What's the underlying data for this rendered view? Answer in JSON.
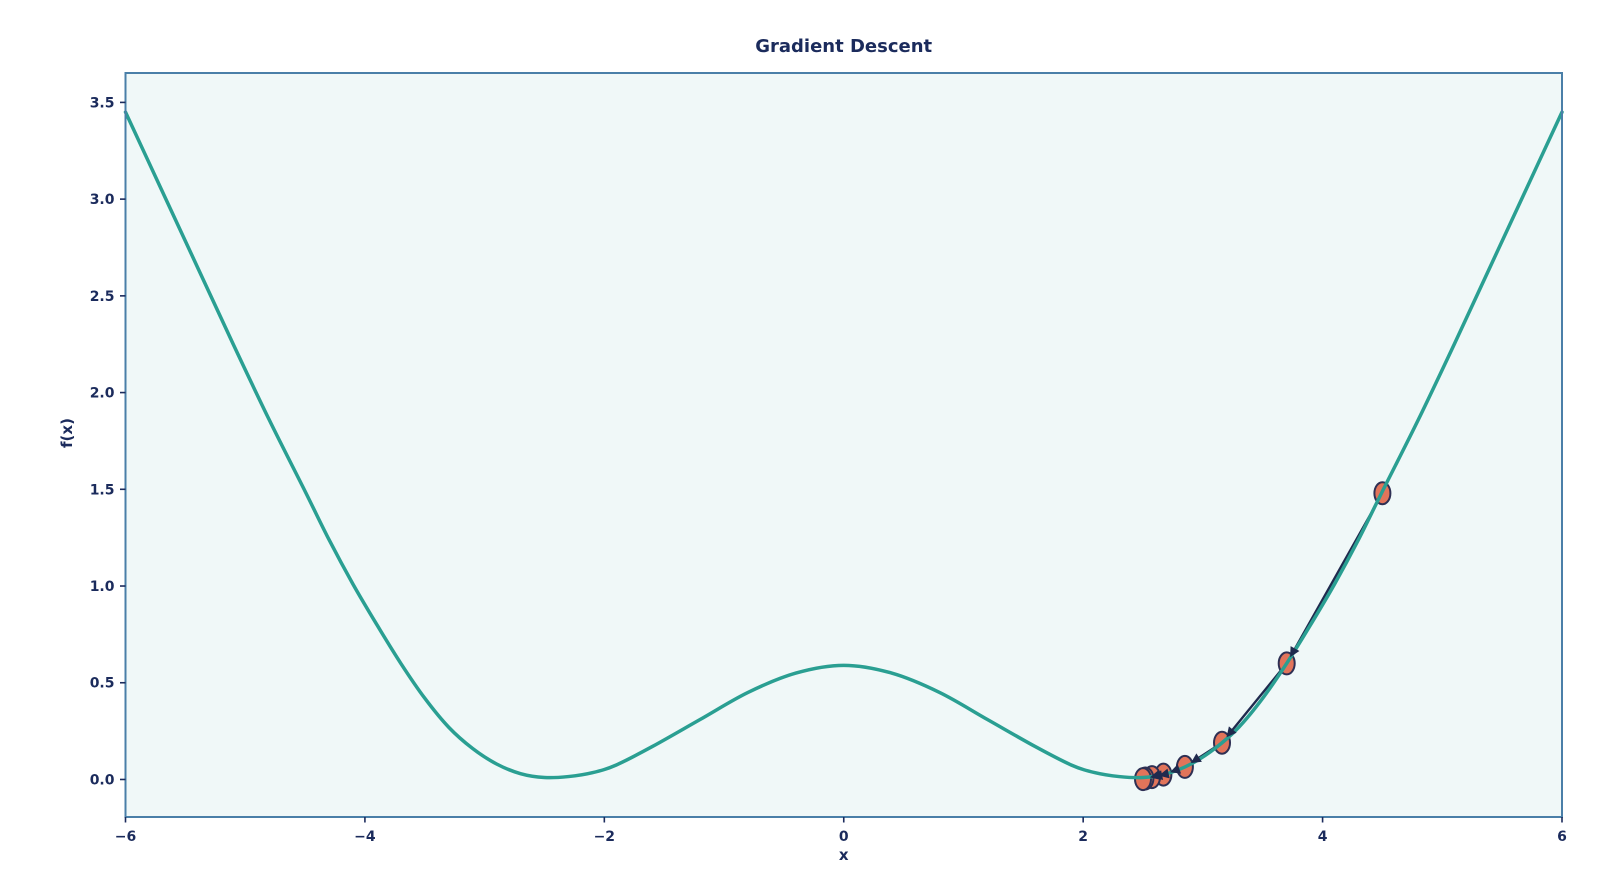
{
  "chart_data": {
    "type": "line",
    "title": "Gradient Descent",
    "xlabel": "x",
    "ylabel": "f(x)",
    "xlim": [
      -6,
      6
    ],
    "ylim": [
      -0.194,
      3.652
    ],
    "grid": false,
    "legend": null,
    "plot_background_color": "#f0f8f8",
    "outer_background_color": "#ffffff",
    "spine_color": "#4a7fa8",
    "text_color": "#1b2b5c",
    "x_ticks": {
      "values": [
        -6,
        -4,
        -2,
        0,
        2,
        4,
        6
      ],
      "labels": [
        "−6",
        "−4",
        "−2",
        "0",
        "2",
        "4",
        "6"
      ]
    },
    "y_ticks": {
      "values": [
        0.0,
        0.5,
        1.0,
        1.5,
        2.0,
        2.5,
        3.0,
        3.5
      ],
      "labels": [
        "0.0",
        "0.5",
        "1.0",
        "1.5",
        "2.0",
        "2.5",
        "3.0",
        "3.5"
      ]
    },
    "series": [
      {
        "name": "objective-function-curve",
        "type": "line",
        "color": "#2a9f92",
        "line_width": 3.5,
        "points": [
          [
            -6.0,
            3.45
          ],
          [
            -5.7,
            3.05
          ],
          [
            -5.4,
            2.65
          ],
          [
            -5.1,
            2.25
          ],
          [
            -4.8,
            1.86
          ],
          [
            -4.5,
            1.49
          ],
          [
            -4.3,
            1.24
          ],
          [
            -4.1,
            1.01
          ],
          [
            -3.9,
            0.8
          ],
          [
            -3.7,
            0.6
          ],
          [
            -3.5,
            0.42
          ],
          [
            -3.3,
            0.27
          ],
          [
            -3.1,
            0.16
          ],
          [
            -2.9,
            0.08
          ],
          [
            -2.7,
            0.03
          ],
          [
            -2.5,
            0.01
          ],
          [
            -2.3,
            0.015
          ],
          [
            -2.1,
            0.035
          ],
          [
            -1.9,
            0.075
          ],
          [
            -1.6,
            0.17
          ],
          [
            -1.2,
            0.31
          ],
          [
            -0.8,
            0.45
          ],
          [
            -0.4,
            0.55
          ],
          [
            0.0,
            0.59
          ],
          [
            0.4,
            0.55
          ],
          [
            0.8,
            0.45
          ],
          [
            1.2,
            0.31
          ],
          [
            1.6,
            0.17
          ],
          [
            1.9,
            0.075
          ],
          [
            2.1,
            0.035
          ],
          [
            2.3,
            0.015
          ],
          [
            2.5,
            0.01
          ],
          [
            2.7,
            0.03
          ],
          [
            2.9,
            0.08
          ],
          [
            3.1,
            0.16
          ],
          [
            3.3,
            0.27
          ],
          [
            3.5,
            0.42
          ],
          [
            3.7,
            0.6
          ],
          [
            3.9,
            0.8
          ],
          [
            4.1,
            1.01
          ],
          [
            4.3,
            1.24
          ],
          [
            4.5,
            1.49
          ],
          [
            4.8,
            1.86
          ],
          [
            5.1,
            2.25
          ],
          [
            5.4,
            2.65
          ],
          [
            5.7,
            3.05
          ],
          [
            6.0,
            3.45
          ]
        ]
      },
      {
        "name": "gradient-descent-path",
        "type": "line_with_arrows",
        "color": "#1f2a4e",
        "line_width": 2.4,
        "arrow_length": 10,
        "arrow_half_width": 5,
        "points": [
          [
            4.5,
            1.48
          ],
          [
            3.7,
            0.6
          ],
          [
            3.16,
            0.19
          ],
          [
            2.85,
            0.065
          ],
          [
            2.67,
            0.025
          ],
          [
            2.575,
            0.012
          ],
          [
            2.52,
            0.005
          ],
          [
            2.5,
            0.002
          ]
        ]
      },
      {
        "name": "descent-iterates",
        "type": "scatter",
        "marker": "ellipse",
        "fill_color": "#e2745a",
        "edge_color": "#2e3054",
        "edge_width": 2,
        "marker_rx": 8,
        "marker_ry": 11,
        "points": [
          [
            4.5,
            1.48
          ],
          [
            3.7,
            0.6
          ],
          [
            3.16,
            0.19
          ],
          [
            2.85,
            0.065
          ],
          [
            2.67,
            0.025
          ],
          [
            2.575,
            0.012
          ],
          [
            2.52,
            0.005
          ],
          [
            2.5,
            0.002
          ]
        ]
      }
    ]
  }
}
